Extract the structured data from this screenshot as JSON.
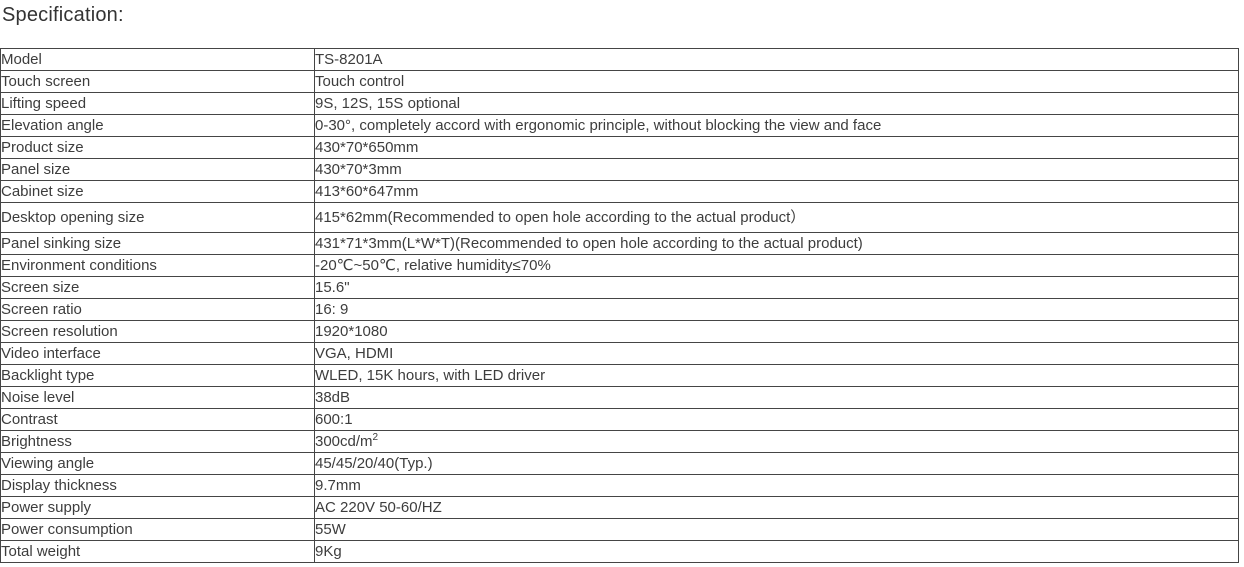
{
  "page": {
    "title": "Specification:"
  },
  "table": {
    "rows": [
      {
        "label": "Model",
        "value": "TS-8201A"
      },
      {
        "label": "Touch screen",
        "value": "Touch control"
      },
      {
        "label": "Lifting speed",
        "value": "9S, 12S, 15S optional"
      },
      {
        "label": "Elevation angle",
        "value": "0-30°, completely accord with ergonomic principle, without blocking the view and face"
      },
      {
        "label": "Product size",
        "value": "430*70*650mm"
      },
      {
        "label": "Panel size",
        "value": "430*70*3mm"
      },
      {
        "label": "Cabinet size",
        "value": "413*60*647mm"
      },
      {
        "label": "Desktop opening size",
        "value": "415*62mm(Recommended to open hole according to the actual product）",
        "tall": true
      },
      {
        "label": "Panel sinking size",
        "value": "431*71*3mm(L*W*T)(Recommended to open hole according to the actual product)"
      },
      {
        "label": "Environment conditions",
        "value": "-20℃~50℃, relative humidity≤70%"
      },
      {
        "label": "Screen size",
        "value": "15.6\""
      },
      {
        "label": "Screen ratio",
        "value": "16: 9"
      },
      {
        "label": "Screen resolution",
        "value": "1920*1080"
      },
      {
        "label": "Video interface",
        "value": "VGA, HDMI"
      },
      {
        "label": "Backlight type",
        "value": "WLED, 15K hours, with LED driver"
      },
      {
        "label": "Noise level",
        "value": "38dB"
      },
      {
        "label": "Contrast",
        "value": "600:1"
      },
      {
        "label": "Brightness",
        "value": "300cd/m",
        "superscript": "2"
      },
      {
        "label": "Viewing angle",
        "value": "45/45/20/40(Typ.)"
      },
      {
        "label": "Display thickness",
        "value": "9.7mm"
      },
      {
        "label": "Power supply",
        "value": "AC 220V 50-60/HZ"
      },
      {
        "label": "Power consumption",
        "value": "55W"
      },
      {
        "label": "Total weight",
        "value": "9Kg"
      }
    ]
  }
}
